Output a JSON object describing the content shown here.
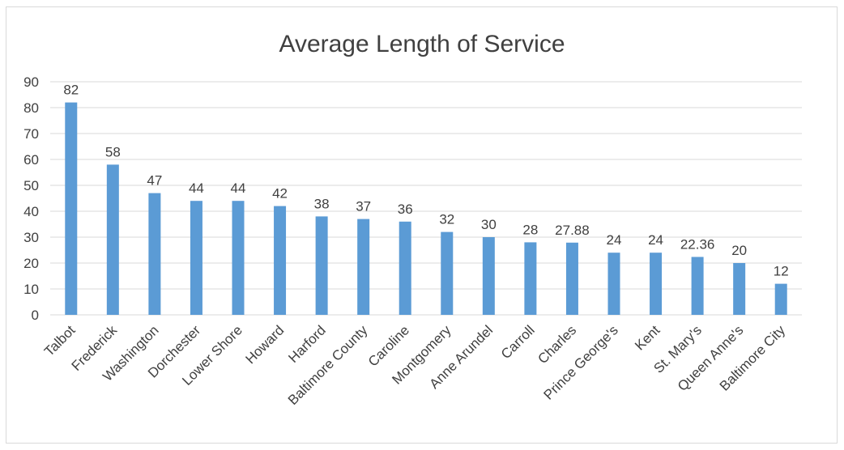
{
  "chart_data": {
    "type": "bar",
    "title": "Average Length of Service",
    "xlabel": "",
    "ylabel": "",
    "ylim": [
      0,
      90
    ],
    "yticks": [
      0,
      10,
      20,
      30,
      40,
      50,
      60,
      70,
      80,
      90
    ],
    "grid": true,
    "legend": "none",
    "bar_color": "#5b9bd5",
    "categories": [
      "Talbot",
      "Frederick",
      "Washington",
      "Dorchester",
      "Lower Shore",
      "Howard",
      "Harford",
      "Baltimore County",
      "Caroline",
      "Montgomery",
      "Anne Arundel",
      "Carroll",
      "Charles",
      "Prince George's",
      "Kent",
      "St. Mary's",
      "Queen Anne's",
      "Baltimore City"
    ],
    "values": [
      82,
      58,
      47,
      44,
      44,
      42,
      38,
      37,
      36,
      32,
      30,
      28,
      27.88,
      24,
      24,
      22.36,
      20,
      12
    ],
    "data_labels": [
      "82",
      "58",
      "47",
      "44",
      "44",
      "42",
      "38",
      "37",
      "36",
      "32",
      "30",
      "28",
      "27.88",
      "24",
      "24",
      "22.36",
      "20",
      "12"
    ]
  }
}
